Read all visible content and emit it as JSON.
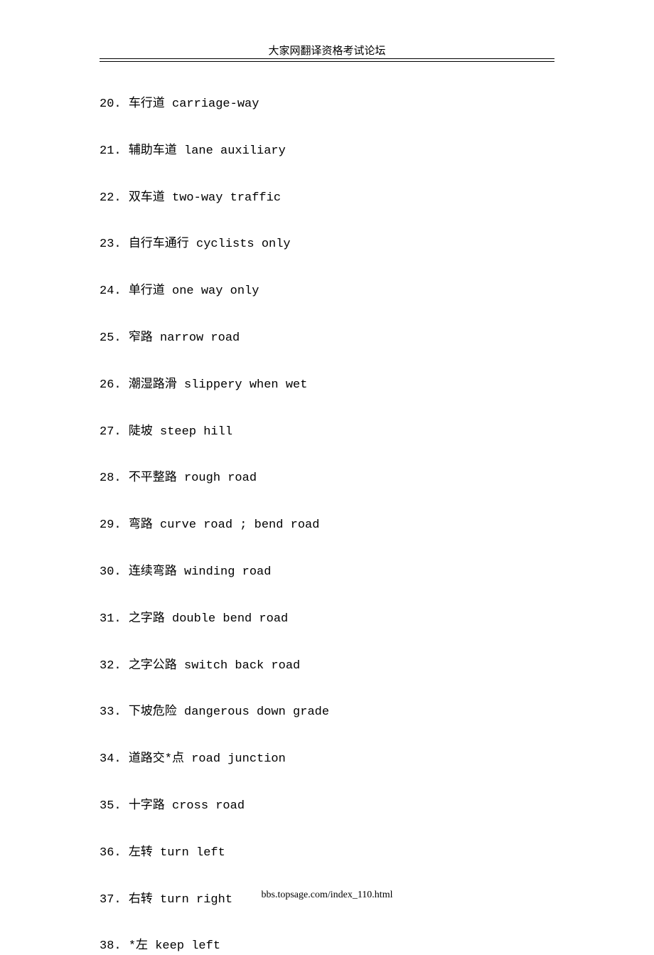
{
  "header": {
    "title": "大家网翻译资格考试论坛"
  },
  "items": [
    {
      "num": "20.",
      "text": "车行道 carriage-way"
    },
    {
      "num": "21.",
      "text": "辅助车道 lane auxiliary"
    },
    {
      "num": "22.",
      "text": "双车道 two-way traffic"
    },
    {
      "num": "23.",
      "text": "自行车通行 cyclists only"
    },
    {
      "num": "24.",
      "text": "单行道 one way only"
    },
    {
      "num": "25.",
      "text": "窄路 narrow road"
    },
    {
      "num": "26.",
      "text": "潮湿路滑 slippery when wet"
    },
    {
      "num": "27.",
      "text": "陡坡 steep hill"
    },
    {
      "num": "28.",
      "text": "不平整路 rough road"
    },
    {
      "num": "29.",
      "text": "弯路 curve road ; bend road"
    },
    {
      "num": "30.",
      "text": "连续弯路 winding road"
    },
    {
      "num": "31.",
      "text": "之字路 double bend road"
    },
    {
      "num": "32.",
      "text": "之字公路 switch back road"
    },
    {
      "num": "33.",
      "text": "下坡危险 dangerous down grade"
    },
    {
      "num": "34.",
      "text": "道路交*点 road junction"
    },
    {
      "num": "35.",
      "text": "十字路 cross road"
    },
    {
      "num": "36.",
      "text": "左转 turn left"
    },
    {
      "num": "37.",
      "text": "右转 turn right"
    },
    {
      "num": "38.",
      "text": "*左 keep left"
    }
  ],
  "footer": {
    "url": "bbs.topsage.com/index_110.html"
  },
  "style": {
    "background_color": "#ffffff",
    "text_color": "#000000",
    "header_fontsize": 15,
    "item_fontsize": 17,
    "footer_fontsize": 14,
    "item_spacing": 42
  }
}
